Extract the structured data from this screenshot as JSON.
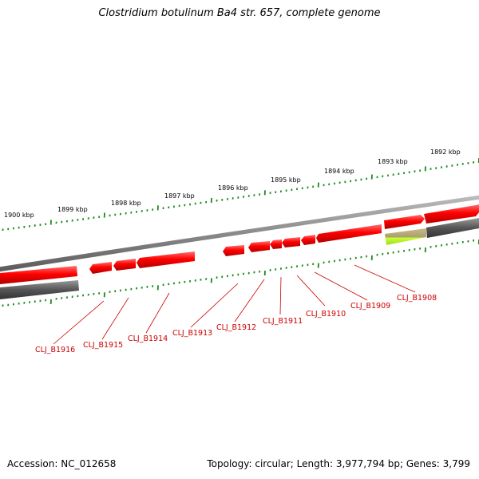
{
  "title": "Clostridium botulinum Ba4 str. 657, complete genome",
  "accession": "Accession: NC_012658",
  "summary": "Topology: circular; Length: 3,977,794 bp; Genes: 3,799",
  "colors": {
    "gene": "#e60000",
    "gene_highlight": "#ff6a6a",
    "backbone": "#8c8c8c",
    "gray_feature": "#606060",
    "rna_feature": "#a9c56a",
    "rna_highlight": "#ccff33",
    "tick": "#1e8a1e",
    "label": "#cc0000"
  },
  "kbp_labels": [
    {
      "kbp": 1892,
      "label": "1892 kbp"
    },
    {
      "kbp": 1893,
      "label": "1893 kbp"
    },
    {
      "kbp": 1894,
      "label": "1894 kbp"
    },
    {
      "kbp": 1895,
      "label": "1895 kbp"
    },
    {
      "kbp": 1896,
      "label": "1896 kbp"
    },
    {
      "kbp": 1897,
      "label": "1897 kbp"
    },
    {
      "kbp": 1898,
      "label": "1898 kbp"
    },
    {
      "kbp": 1899,
      "label": "1899 kbp"
    },
    {
      "kbp": 1900,
      "label": "1900 kbp"
    }
  ],
  "genes": [
    {
      "label": "CLJ_B1908"
    },
    {
      "label": "CLJ_B1909"
    },
    {
      "label": "CLJ_B1910"
    },
    {
      "label": "CLJ_B1911"
    },
    {
      "label": "CLJ_B1912"
    },
    {
      "label": "CLJ_B1913"
    },
    {
      "label": "CLJ_B1914"
    },
    {
      "label": "CLJ_B1915"
    },
    {
      "label": "CLJ_B1916"
    }
  ]
}
